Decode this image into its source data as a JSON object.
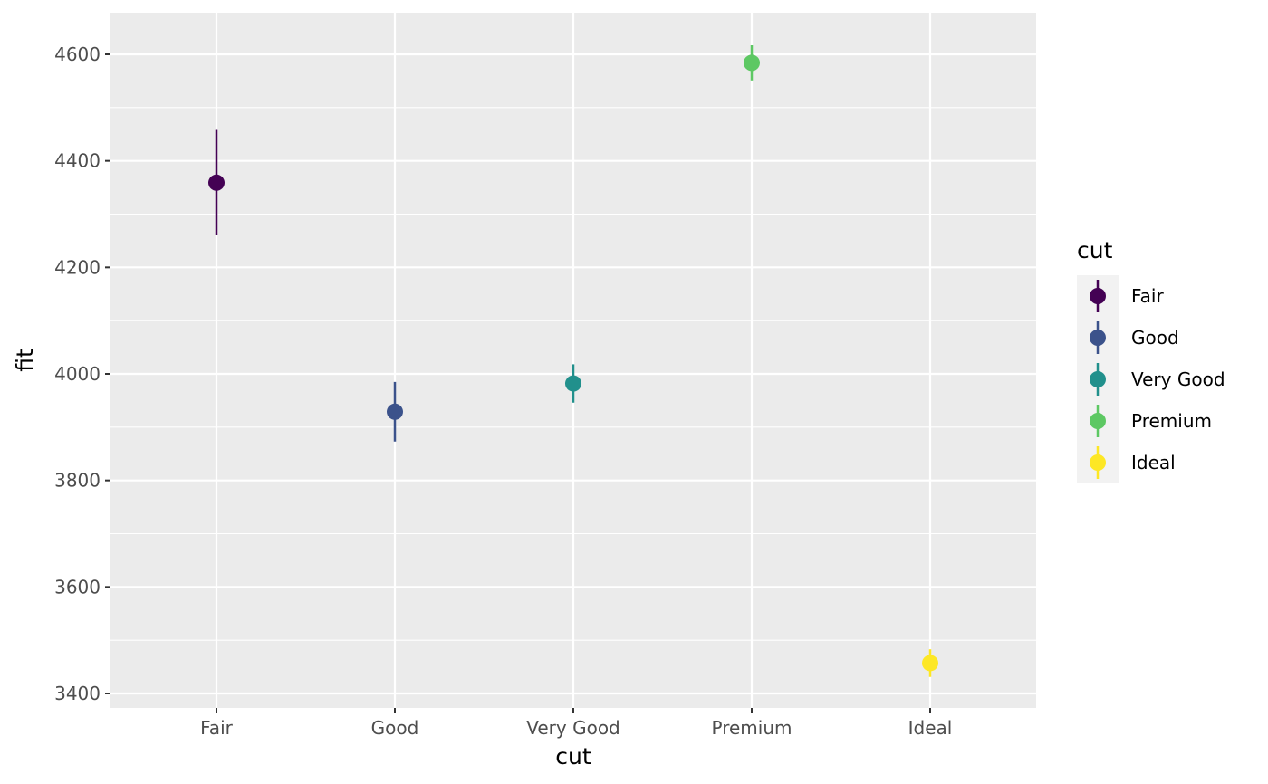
{
  "chart_data": {
    "type": "scatter",
    "categories": [
      "Fair",
      "Good",
      "Very Good",
      "Premium",
      "Ideal"
    ],
    "series": [
      {
        "category": "Fair",
        "fit": 4359,
        "lower": 4260,
        "upper": 4458,
        "color": "#440154"
      },
      {
        "category": "Good",
        "fit": 3929,
        "lower": 3873,
        "upper": 3985,
        "color": "#3B528B"
      },
      {
        "category": "Very Good",
        "fit": 3982,
        "lower": 3946,
        "upper": 4018,
        "color": "#21908C"
      },
      {
        "category": "Premium",
        "fit": 4584,
        "lower": 4551,
        "upper": 4617,
        "color": "#5DC863"
      },
      {
        "category": "Ideal",
        "fit": 3457,
        "lower": 3431,
        "upper": 3483,
        "color": "#FDE725"
      }
    ],
    "xlabel": "cut",
    "ylabel": "fit",
    "ylim": [
      3400,
      4600
    ],
    "ymajor_ticks": [
      3400,
      3600,
      3800,
      4000,
      4200,
      4400,
      4600
    ],
    "ytick_labels": [
      "3400",
      "3600",
      "3800",
      "4000",
      "4200",
      "4400",
      "4600"
    ],
    "grid": true,
    "legend": {
      "title": "cut",
      "position": "right",
      "entries": [
        "Fair",
        "Good",
        "Very Good",
        "Premium",
        "Ideal"
      ]
    }
  }
}
